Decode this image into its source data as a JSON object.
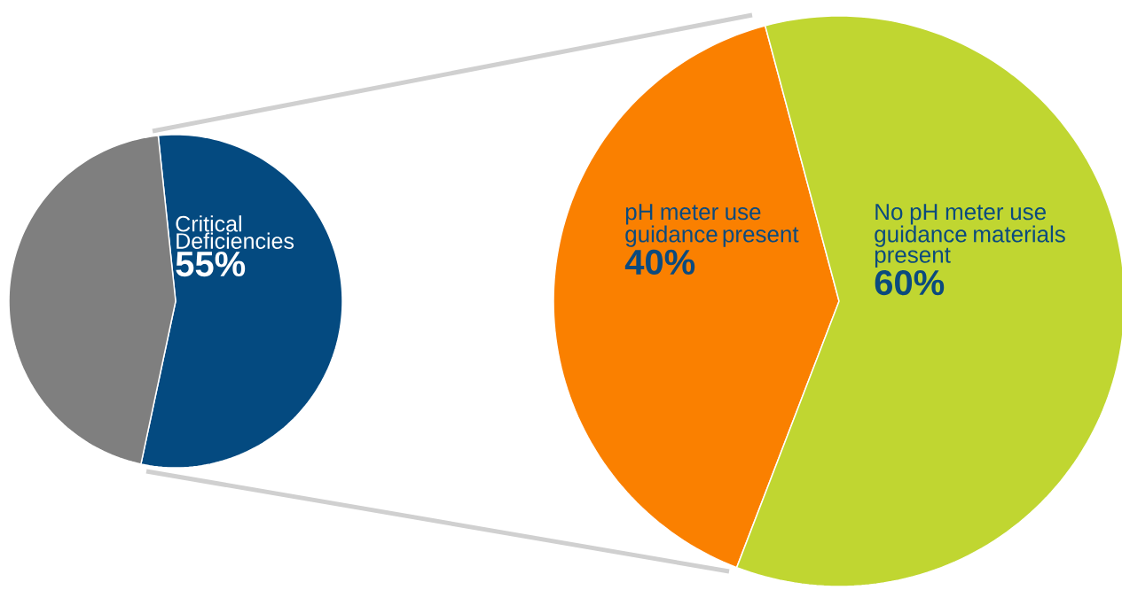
{
  "chart_data": [
    {
      "type": "pie",
      "categories": [
        "Critical Deficiencies",
        null
      ],
      "values": [
        55,
        45
      ],
      "colors": [
        "#044a80",
        "#7f7f7f"
      ],
      "value_labels": [
        "55%",
        null
      ]
    },
    {
      "type": "pie",
      "categories": [
        "pH meter use guidance present",
        "No pH meter use guidance materials present"
      ],
      "values": [
        40,
        60
      ],
      "colors": [
        "#fa8000",
        "#c0d631"
      ],
      "value_labels": [
        "40%",
        "60%"
      ]
    }
  ]
}
